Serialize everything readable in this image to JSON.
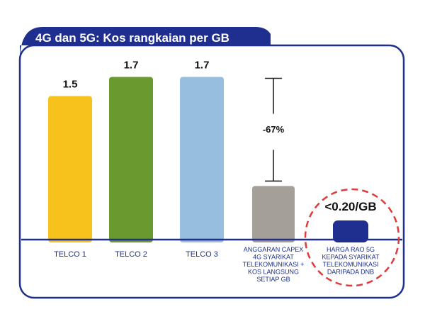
{
  "title": "4G dan 5G: Kos rangkaian per GB",
  "colors": {
    "navy": "#1e2f8f",
    "telco1": "#f7c21b",
    "telco2": "#6a9a2f",
    "telco3": "#97bddf",
    "capex": "#a59f99",
    "dnb": "#1e2f8f",
    "circle": "#e03a3a"
  },
  "chart_data": {
    "type": "bar",
    "title": "4G dan 5G: Kos rangkaian per GB",
    "categories": [
      "TELCO 1",
      "TELCO 2",
      "TELCO 3",
      "ANGGARAN CAPEX 4G SYARIKAT TELEKOMUNIKASI + KOS LANGSUNG SETIAP GB",
      "HARGA RAO 5G KEPADA SYARIKAT TELEKOMUNIKASI DARIPADA DNB"
    ],
    "category_lines": [
      [
        "TELCO 1"
      ],
      [
        "TELCO 2"
      ],
      [
        "TELCO 3"
      ],
      [
        "ANGGARAN CAPEX",
        "4G SYARIKAT",
        "TELEKOMUNIKASI +",
        "KOS LANGSUNG",
        "SETIAP GB"
      ],
      [
        "HARGA RAO 5G",
        "KEPADA SYARIKAT",
        "TELEKOMUNIKASI",
        "DARIPADA DNB"
      ]
    ],
    "values": [
      1.5,
      1.7,
      1.7,
      0.56,
      0.2
    ],
    "value_labels": [
      "1.5",
      "1.7",
      "1.7",
      "",
      "<0.20/GB"
    ],
    "annotation": "-67%",
    "ylim": [
      0,
      1.8
    ],
    "xlabel": "",
    "ylabel": "",
    "grid": false
  }
}
